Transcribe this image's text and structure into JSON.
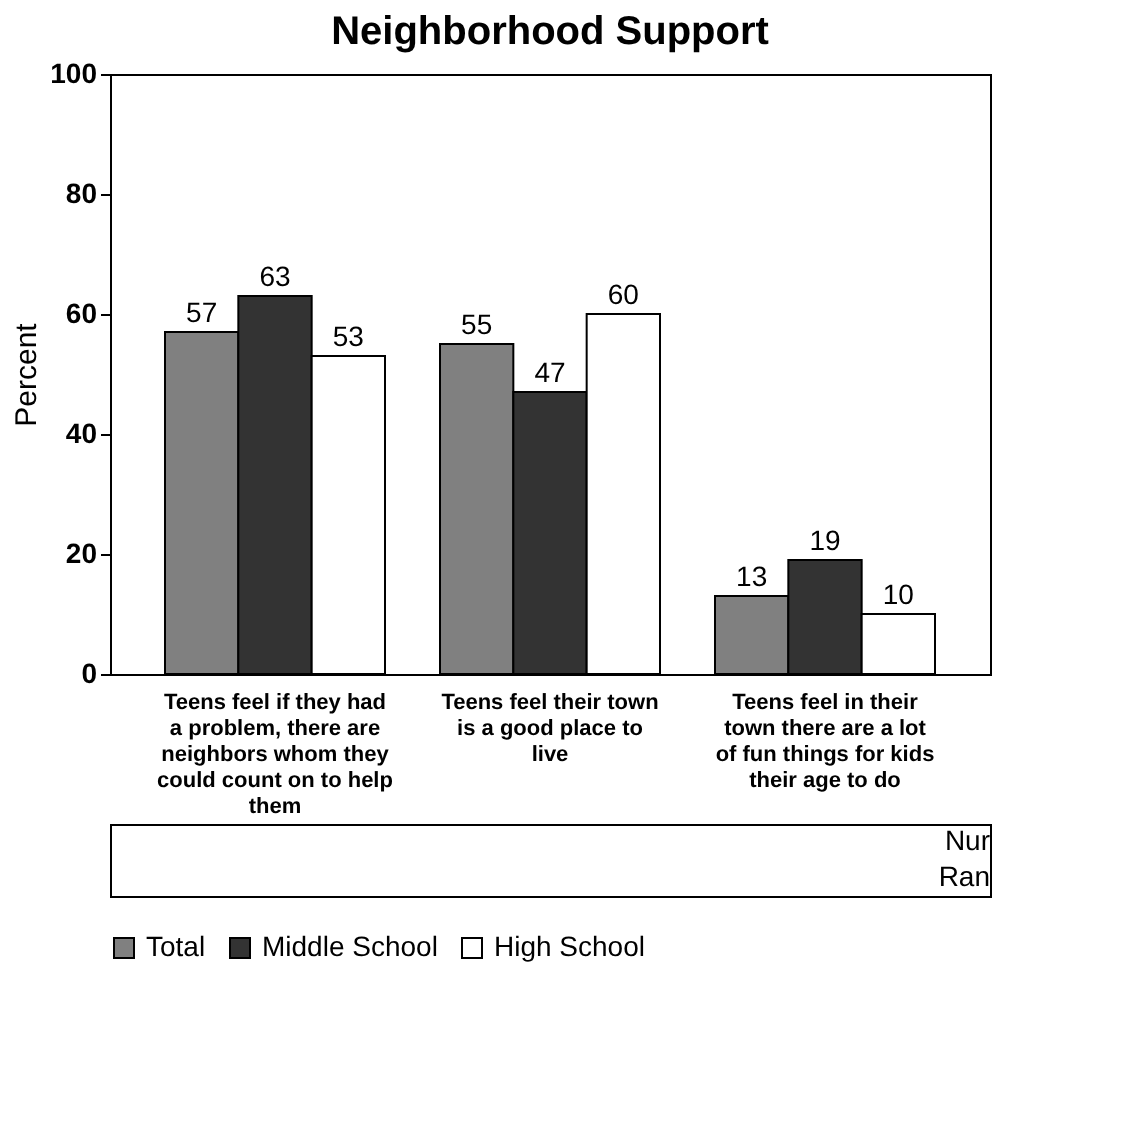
{
  "chart_data": {
    "type": "bar",
    "title": "Neighborhood Support",
    "ylabel": "Percent",
    "categories": [
      "Teens feel if they had a problem, there are neighbors whom they could count on to help them",
      "Teens feel their town is a good place to live",
      "Teens feel in their town there are a lot of fun things for kids their age to do"
    ],
    "series": [
      {
        "name": "Total",
        "color": "#808080",
        "values": [
          57,
          55,
          13
        ]
      },
      {
        "name": "Middle School",
        "color": "#333333",
        "values": [
          63,
          47,
          19
        ]
      },
      {
        "name": "High School",
        "color": "#ffffff",
        "values": [
          53,
          60,
          10
        ]
      }
    ],
    "ylim": [
      0,
      100
    ],
    "yticks": [
      0,
      20,
      40,
      60,
      80,
      100
    ],
    "data_labels": true,
    "legend": "bottom",
    "grid": false,
    "annotations": [
      "Nur",
      "Ran"
    ]
  }
}
